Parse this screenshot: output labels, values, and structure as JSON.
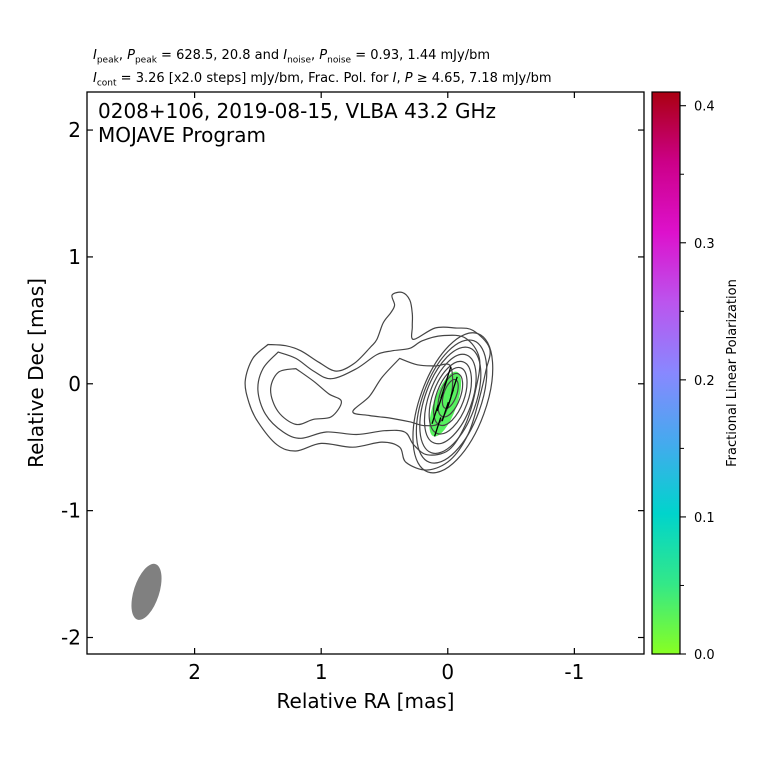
{
  "header": {
    "line1": {
      "a": "I",
      "a_sub": "peak",
      "b": "P",
      "b_sub": "peak",
      "mid": " = 628.5, 20.8 and ",
      "c": "I",
      "c_sub": "noise",
      "d": "P",
      "d_sub": "noise",
      "end": " = 0.93, 1.44 mJy/bm"
    },
    "line2": {
      "a": "I",
      "a_sub": "cont",
      "mid": " = 3.26 [x2.0 steps] mJy/bm, Frac. Pol. for ",
      "b": "I",
      "c": "P",
      "end": " ≥ 4.65, 7.18 mJy/bm"
    }
  },
  "annotation": {
    "line1": "0208+106, 2019-08-15, VLBA 43.2 GHz",
    "line2": "MOJAVE Program"
  },
  "chart_data": {
    "type": "contour",
    "xlabel": "Relative RA [mas]",
    "ylabel": "Relative Dec [mas]",
    "xlim": [
      2.85,
      -1.55
    ],
    "ylim": [
      -2.13,
      2.3
    ],
    "x_ticks": [
      2,
      1,
      0,
      -1
    ],
    "y_ticks": [
      2,
      1,
      0,
      -1,
      -2
    ],
    "x_tick_labels": [
      "2",
      "1",
      "0",
      "-1"
    ],
    "y_tick_labels": [
      "2",
      "1",
      "0",
      "-1",
      "-2"
    ],
    "contour_base_mJy_per_beam": 3.26,
    "contour_step_factor": 2.0,
    "core_contours": [
      {
        "cx": -0.02,
        "cy": -0.08,
        "a": 0.12,
        "b": 0.05,
        "pa_deg": 20
      },
      {
        "cx": -0.02,
        "cy": -0.09,
        "a": 0.18,
        "b": 0.08,
        "pa_deg": 20
      },
      {
        "cx": -0.02,
        "cy": -0.1,
        "a": 0.24,
        "b": 0.11,
        "pa_deg": 20
      },
      {
        "cx": -0.02,
        "cy": -0.11,
        "a": 0.3,
        "b": 0.14,
        "pa_deg": 20
      },
      {
        "cx": -0.02,
        "cy": -0.12,
        "a": 0.37,
        "b": 0.17,
        "pa_deg": 20
      },
      {
        "cx": -0.02,
        "cy": -0.13,
        "a": 0.44,
        "b": 0.2,
        "pa_deg": 20
      },
      {
        "cx": -0.03,
        "cy": -0.14,
        "a": 0.51,
        "b": 0.23,
        "pa_deg": 20
      },
      {
        "cx": -0.04,
        "cy": -0.15,
        "a": 0.58,
        "b": 0.26,
        "pa_deg": 20
      }
    ],
    "extended_contours": [
      [
        [
          1.42,
          0.31
        ],
        [
          1.28,
          0.3
        ],
        [
          1.16,
          0.26
        ],
        [
          1.02,
          0.17
        ],
        [
          0.88,
          0.1
        ],
        [
          0.74,
          0.16
        ],
        [
          0.61,
          0.29
        ],
        [
          0.56,
          0.35
        ],
        [
          0.51,
          0.48
        ],
        [
          0.45,
          0.56
        ],
        [
          0.42,
          0.62
        ],
        [
          0.44,
          0.7
        ],
        [
          0.36,
          0.72
        ],
        [
          0.3,
          0.66
        ],
        [
          0.28,
          0.55
        ],
        [
          0.28,
          0.45
        ],
        [
          0.27,
          0.35
        ],
        [
          0.1,
          0.44
        ],
        [
          -0.06,
          0.44
        ],
        [
          -0.2,
          0.42
        ],
        [
          -0.33,
          0.28
        ],
        [
          -0.3,
          0.1
        ],
        [
          -0.24,
          -0.15
        ],
        [
          -0.16,
          -0.4
        ],
        [
          -0.02,
          -0.6
        ],
        [
          0.16,
          -0.68
        ],
        [
          0.33,
          -0.62
        ],
        [
          0.38,
          -0.5
        ],
        [
          0.52,
          -0.46
        ],
        [
          0.75,
          -0.5
        ],
        [
          1.0,
          -0.47
        ],
        [
          1.2,
          -0.53
        ],
        [
          1.35,
          -0.48
        ],
        [
          1.5,
          -0.3
        ],
        [
          1.57,
          -0.15
        ],
        [
          1.6,
          0.02
        ],
        [
          1.54,
          0.2
        ],
        [
          1.42,
          0.31
        ]
      ],
      [
        [
          1.34,
          0.25
        ],
        [
          1.2,
          0.2
        ],
        [
          1.06,
          0.1
        ],
        [
          0.92,
          0.04
        ],
        [
          0.72,
          0.12
        ],
        [
          0.56,
          0.23
        ],
        [
          0.44,
          0.26
        ],
        [
          0.3,
          0.28
        ],
        [
          0.2,
          0.34
        ],
        [
          0.04,
          0.38
        ],
        [
          -0.14,
          0.36
        ],
        [
          -0.25,
          0.2
        ],
        [
          -0.22,
          -0.05
        ],
        [
          -0.14,
          -0.32
        ],
        [
          -0.01,
          -0.52
        ],
        [
          0.16,
          -0.56
        ],
        [
          0.27,
          -0.48
        ],
        [
          0.34,
          -0.38
        ],
        [
          0.5,
          -0.37
        ],
        [
          0.72,
          -0.4
        ],
        [
          0.96,
          -0.38
        ],
        [
          1.16,
          -0.43
        ],
        [
          1.3,
          -0.38
        ],
        [
          1.44,
          -0.24
        ],
        [
          1.5,
          -0.05
        ],
        [
          1.46,
          0.12
        ],
        [
          1.34,
          0.25
        ]
      ],
      [
        [
          1.2,
          0.12
        ],
        [
          1.06,
          0.02
        ],
        [
          0.94,
          -0.08
        ],
        [
          0.84,
          -0.14
        ],
        [
          0.92,
          -0.26
        ],
        [
          1.06,
          -0.28
        ],
        [
          1.2,
          -0.32
        ],
        [
          1.34,
          -0.22
        ],
        [
          1.4,
          -0.05
        ],
        [
          1.34,
          0.09
        ],
        [
          1.2,
          0.12
        ]
      ],
      [
        [
          0.38,
          0.2
        ],
        [
          0.24,
          0.15
        ],
        [
          0.1,
          0.14
        ],
        [
          -0.02,
          0.14
        ],
        [
          -0.03,
          -0.08
        ],
        [
          0.06,
          -0.3
        ],
        [
          0.18,
          -0.33
        ],
        [
          0.3,
          -0.3
        ],
        [
          0.46,
          -0.27
        ],
        [
          0.62,
          -0.25
        ],
        [
          0.75,
          -0.22
        ],
        [
          0.62,
          -0.1
        ],
        [
          0.52,
          0.05
        ],
        [
          0.38,
          0.2
        ]
      ]
    ],
    "polarization_region": {
      "cx": 0.02,
      "cy": -0.16,
      "a": 0.27,
      "b": 0.09,
      "pa_deg": 20,
      "fractional_pol": 0.03
    },
    "evpa_vectors": [
      {
        "x": 0.0,
        "y": 0.06,
        "angle_deg": 18
      },
      {
        "x": 0.03,
        "y": -0.04,
        "angle_deg": 18
      },
      {
        "x": 0.06,
        "y": -0.14,
        "angle_deg": 18
      },
      {
        "x": 0.1,
        "y": -0.24,
        "angle_deg": 18
      },
      {
        "x": -0.05,
        "y": -0.02,
        "angle_deg": 18
      },
      {
        "x": -0.02,
        "y": -0.12,
        "angle_deg": 18
      },
      {
        "x": 0.02,
        "y": -0.22,
        "angle_deg": 18
      },
      {
        "x": 0.08,
        "y": -0.34,
        "angle_deg": 18
      }
    ],
    "beam": {
      "x": 2.38,
      "y": -1.64,
      "major_mas": 0.46,
      "minor_mas": 0.2,
      "pa_deg": 18
    },
    "colorbar": {
      "label": "Fractional Linear Polarization",
      "range": [
        0.0,
        0.41
      ],
      "ticks": [
        0.0,
        0.1,
        0.2,
        0.3,
        0.4
      ],
      "tick_labels": [
        "0.0",
        "0.1",
        "0.2",
        "0.3",
        "0.4"
      ],
      "minor_ticks": [
        0.05,
        0.15,
        0.25,
        0.35
      ],
      "colormap_stops": [
        "#88ff22",
        "#33e888",
        "#00d4cc",
        "#44aaee",
        "#8888ff",
        "#bb55ee",
        "#dd11cc",
        "#cc0088",
        "#aa0011"
      ]
    },
    "colors": {
      "contour": "#444444",
      "beam": "#808080",
      "evpa": "#000000",
      "frame": "#000000"
    },
    "grid": false
  }
}
